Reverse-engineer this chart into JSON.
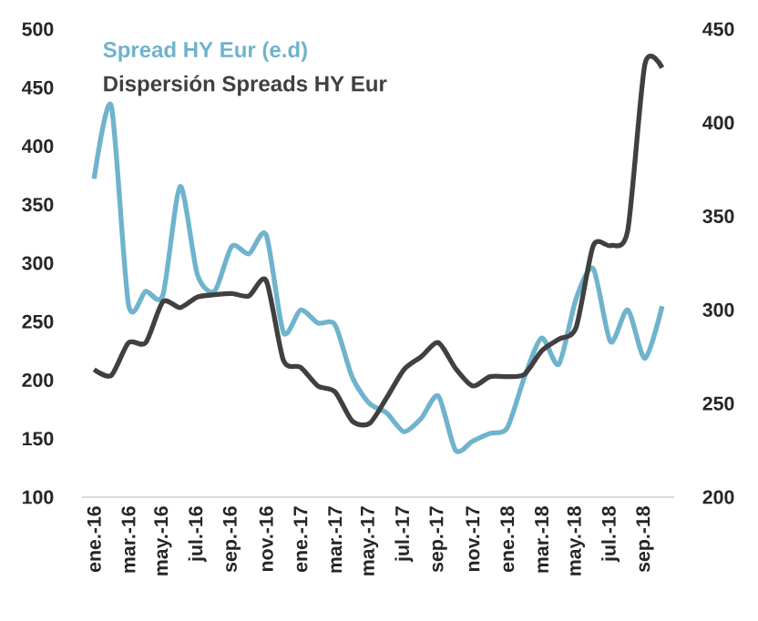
{
  "chart_data": {
    "type": "line",
    "categories": [
      "ene.-16",
      null,
      "mar.-16",
      null,
      "may.-16",
      null,
      "jul.-16",
      null,
      "sep.-16",
      null,
      "nov.-16",
      null,
      "ene.-17",
      null,
      "mar.-17",
      null,
      "may.-17",
      null,
      "jul.-17",
      null,
      "sep.-17",
      null,
      "nov.-17",
      null,
      "ene.-18",
      null,
      "mar.-18",
      null,
      "may.-18",
      null,
      "jul.-18",
      null,
      "sep.-18",
      null
    ],
    "series": [
      {
        "name": "Spread HY Eur (e.d)",
        "color": "#6fb3cd",
        "axis": "y2",
        "values": [
          370,
          409,
          303,
          310,
          308,
          366,
          319,
          310,
          334,
          330,
          340,
          288,
          300,
          293,
          292,
          264,
          250,
          245,
          235,
          242,
          254,
          225,
          230,
          234,
          237,
          264,
          285,
          271,
          306,
          322,
          283,
          300,
          274,
          302
        ]
      },
      {
        "name": "Dispersión Spreads HY Eur",
        "color": "#404040",
        "axis": "y",
        "values": [
          209,
          204,
          232,
          232,
          267,
          262,
          271,
          273,
          274,
          272,
          285,
          217,
          211,
          195,
          190,
          165,
          163,
          185,
          209,
          220,
          232,
          210,
          195,
          203,
          203,
          205,
          225,
          235,
          245,
          315,
          315,
          328,
          470,
          467
        ]
      }
    ],
    "ylim": [
      100,
      500
    ],
    "yticks": [
      100,
      150,
      200,
      250,
      300,
      350,
      400,
      450,
      500
    ],
    "y2lim": [
      200,
      450
    ],
    "y2ticks": [
      200,
      250,
      300,
      350,
      400,
      450
    ],
    "legend": "top left",
    "grid": false
  }
}
